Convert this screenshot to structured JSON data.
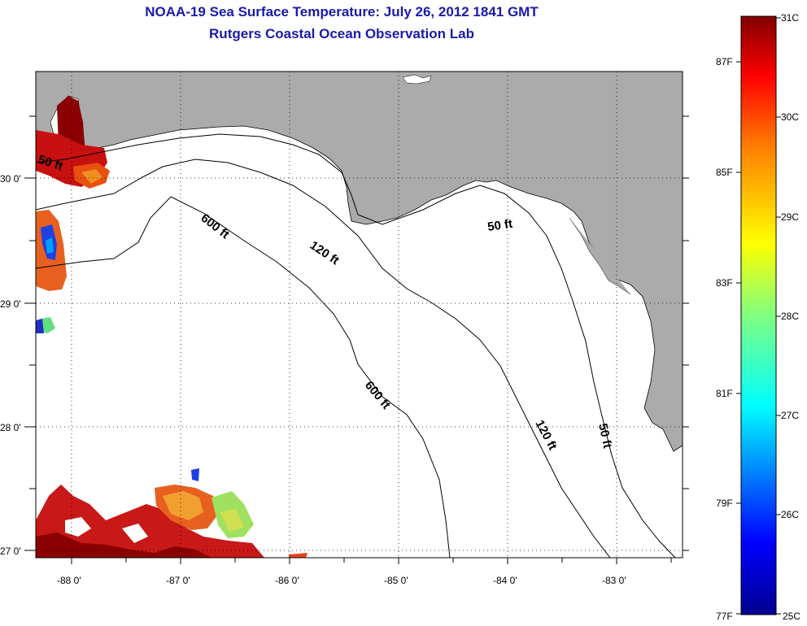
{
  "title": "NOAA-19 Sea Surface Temperature:  July 26, 2012 1841 GMT",
  "subtitle": "Rutgers Coastal Ocean Observation Lab",
  "map": {
    "lon_range": [
      -88.33,
      -82.45
    ],
    "lat_range": [
      26.97,
      30.87
    ],
    "lon_ticks": [
      "-88 0'",
      "-87 0'",
      "-86 0'",
      "-85 0'",
      "-84 0'",
      "-83 0'"
    ],
    "lat_ticks": [
      "30 0'",
      "29 0'",
      "28 0'",
      "27 0'"
    ],
    "grid": "dotted",
    "land_color": "#ababab",
    "water_color": "#ffffff",
    "contours": [
      {
        "label": "50 ft"
      },
      {
        "label": "50 ft"
      },
      {
        "label": "50 ft"
      },
      {
        "label": "120 ft"
      },
      {
        "label": "120 ft"
      },
      {
        "label": "600 ft"
      },
      {
        "label": "600 ft"
      }
    ]
  },
  "colorbar": {
    "celsius_labels": [
      "31C",
      "30C",
      "29C",
      "28C",
      "27C",
      "26C",
      "25C"
    ],
    "fahrenheit_labels": [
      "87F",
      "85F",
      "83F",
      "81F",
      "79F",
      "77F"
    ],
    "colors": [
      "#00008f",
      "#0000ff",
      "#0080ff",
      "#00ffff",
      "#80ff80",
      "#ffff00",
      "#ff8000",
      "#ff0000",
      "#800000"
    ]
  }
}
